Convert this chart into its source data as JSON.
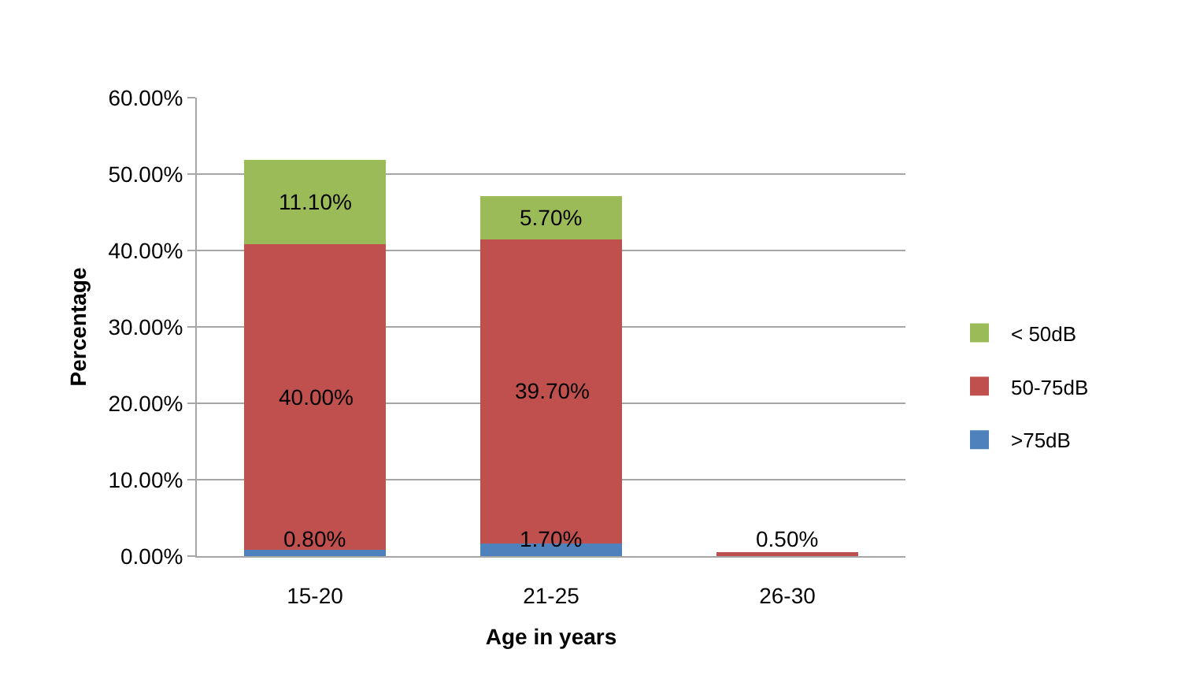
{
  "chart_data": {
    "type": "bar",
    "stacked": true,
    "xlabel": "Age in years",
    "ylabel": "Percentage",
    "categories": [
      "15-20",
      "21-25",
      "26-30"
    ],
    "series": [
      {
        "name": ">75dB",
        "color": "#4f81bd",
        "values": [
          0.8,
          1.7,
          null
        ],
        "value_labels": [
          "0.80%",
          "1.70%",
          null
        ]
      },
      {
        "name": "50-75dB",
        "color": "#c0504d",
        "values": [
          40.0,
          39.7,
          0.5
        ],
        "value_labels": [
          "40.00%",
          "39.70%",
          "0.50%"
        ]
      },
      {
        "name": "< 50dB",
        "color": "#9bbb59",
        "values": [
          11.1,
          5.7,
          null
        ],
        "value_labels": [
          "11.10%",
          "5.70%",
          null
        ]
      }
    ],
    "ylim": [
      0,
      60
    ],
    "yticks": [
      {
        "value": 0,
        "label": "0.00%"
      },
      {
        "value": 10,
        "label": "10.00%"
      },
      {
        "value": 20,
        "label": "20.00%"
      },
      {
        "value": 30,
        "label": "30.00%"
      },
      {
        "value": 40,
        "label": "40.00%"
      },
      {
        "value": 50,
        "label": "50.00%"
      },
      {
        "value": 60,
        "label": "60.00%"
      }
    ],
    "grid": "y",
    "legend": "right"
  }
}
